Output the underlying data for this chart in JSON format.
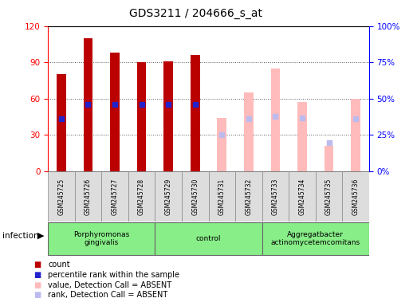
{
  "title": "GDS3211 / 204666_s_at",
  "samples": [
    "GSM245725",
    "GSM245726",
    "GSM245727",
    "GSM245728",
    "GSM245729",
    "GSM245730",
    "GSM245731",
    "GSM245732",
    "GSM245733",
    "GSM245734",
    "GSM245735",
    "GSM245736"
  ],
  "count_values": [
    80,
    110,
    98,
    90,
    91,
    96,
    null,
    null,
    null,
    null,
    null,
    null
  ],
  "percentile_rank_pct": [
    36,
    46,
    46,
    46,
    46,
    46,
    null,
    null,
    null,
    null,
    null,
    null
  ],
  "absent_value": [
    null,
    null,
    null,
    null,
    null,
    null,
    44,
    65,
    85,
    57,
    21,
    60
  ],
  "absent_rank_pct": [
    null,
    null,
    null,
    null,
    null,
    null,
    25,
    36,
    38,
    37,
    20,
    36
  ],
  "ylim_left": [
    0,
    120
  ],
  "ylim_right": [
    0,
    100
  ],
  "yticks_left": [
    0,
    30,
    60,
    90,
    120
  ],
  "yticks_right": [
    0,
    25,
    50,
    75,
    100
  ],
  "bar_width": 0.35,
  "count_color": "#bb0000",
  "rank_color": "#2222cc",
  "absent_value_color": "#ffbbbb",
  "absent_rank_color": "#bbbbee",
  "grid_color": "#555555",
  "background_color": "#ffffff",
  "group_defs": [
    {
      "label": "Porphyromonas\ngingivalis",
      "start": 0,
      "end": 4
    },
    {
      "label": "control",
      "start": 4,
      "end": 8
    },
    {
      "label": "Aggregatbacter\nactinomycetemcomitans",
      "start": 8,
      "end": 12
    }
  ],
  "group_color": "#88ee88",
  "sample_box_color": "#dddddd",
  "legend_items": [
    {
      "color": "#bb0000",
      "label": "count"
    },
    {
      "color": "#2222cc",
      "label": "percentile rank within the sample"
    },
    {
      "color": "#ffbbbb",
      "label": "value, Detection Call = ABSENT"
    },
    {
      "color": "#bbbbee",
      "label": "rank, Detection Call = ABSENT"
    }
  ]
}
